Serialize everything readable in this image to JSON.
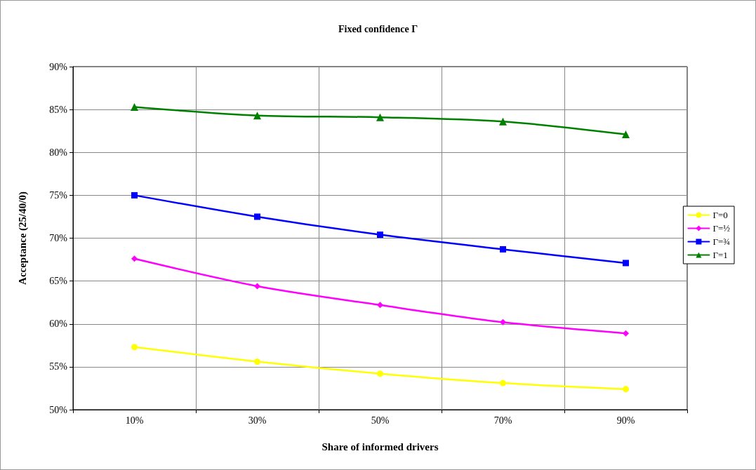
{
  "chart_data": {
    "type": "line",
    "title": "Fixed confidence Γ",
    "xlabel": "Share of informed drivers",
    "ylabel": "Acceptance (25/40/0)",
    "categories": [
      "10%",
      "30%",
      "50%",
      "70%",
      "90%"
    ],
    "series": [
      {
        "name": "Γ=0",
        "color": "#ffff00",
        "marker": "circle",
        "values": [
          57.3,
          55.6,
          54.2,
          53.1,
          52.4
        ]
      },
      {
        "name": "Γ=½",
        "color": "#ff00ff",
        "marker": "diamond",
        "values": [
          67.6,
          64.4,
          62.2,
          60.2,
          58.9
        ]
      },
      {
        "name": "Γ=¾",
        "color": "#0000ff",
        "marker": "square",
        "values": [
          75.0,
          72.5,
          70.4,
          68.7,
          67.1
        ]
      },
      {
        "name": "Γ=1",
        "color": "#008000",
        "marker": "triangle",
        "values": [
          85.3,
          84.3,
          84.1,
          83.6,
          82.1
        ]
      }
    ],
    "ylim": [
      50,
      90
    ],
    "yticks": [
      {
        "value": 50,
        "label": "50%"
      },
      {
        "value": 55,
        "label": "55%"
      },
      {
        "value": 60,
        "label": "60%"
      },
      {
        "value": 65,
        "label": "65%"
      },
      {
        "value": 70,
        "label": "70%"
      },
      {
        "value": 75,
        "label": "75%"
      },
      {
        "value": 80,
        "label": "80%"
      },
      {
        "value": 85,
        "label": "85%"
      },
      {
        "value": 90,
        "label": "90%"
      }
    ],
    "grid": true,
    "legend": "right",
    "line_style": "solid"
  }
}
